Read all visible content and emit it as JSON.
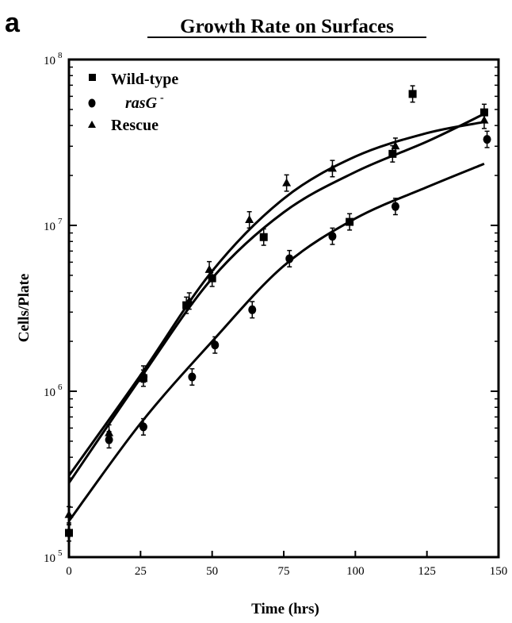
{
  "panel_label": "a",
  "chart_data": {
    "type": "scatter",
    "title": "Growth Rate on Surfaces",
    "xlabel": "Time (hrs)",
    "ylabel": "Cells/Plate",
    "xlim": [
      0,
      150
    ],
    "ylim": [
      100000,
      100000000
    ],
    "y_scale": "log",
    "x_ticks": [
      "0",
      "25",
      "50",
      "75",
      "100",
      "125",
      "150"
    ],
    "y_ticks": [
      {
        "base": "10",
        "exp": "5",
        "value": 100000
      },
      {
        "base": "10",
        "exp": "6",
        "value": 1000000
      },
      {
        "base": "10",
        "exp": "7",
        "value": 10000000
      },
      {
        "base": "10",
        "exp": "8",
        "value": 100000000
      }
    ],
    "grid": false,
    "legend_position": "top-left",
    "series": [
      {
        "name": "Wild-type",
        "marker": "square",
        "points": [
          {
            "x": 0,
            "y": 140000
          },
          {
            "x": 26,
            "y": 1200000
          },
          {
            "x": 41,
            "y": 3300000
          },
          {
            "x": 50,
            "y": 4800000
          },
          {
            "x": 68,
            "y": 8500000
          },
          {
            "x": 98,
            "y": 10500000
          },
          {
            "x": 113,
            "y": 27000000
          },
          {
            "x": 120,
            "y": 62000000
          },
          {
            "x": 145,
            "y": 48000000
          }
        ],
        "fit": [
          {
            "x": 0,
            "y": 280000
          },
          {
            "x": 25,
            "y": 1200000
          },
          {
            "x": 50,
            "y": 4800000
          },
          {
            "x": 75,
            "y": 12000000
          },
          {
            "x": 100,
            "y": 21000000
          },
          {
            "x": 125,
            "y": 32000000
          },
          {
            "x": 145,
            "y": 47000000
          }
        ]
      },
      {
        "name": "rasG",
        "name_superscript": "-",
        "marker": "circle",
        "points": [
          {
            "x": 0,
            "y": 140000
          },
          {
            "x": 14,
            "y": 510000
          },
          {
            "x": 26,
            "y": 610000
          },
          {
            "x": 43,
            "y": 1220000
          },
          {
            "x": 51,
            "y": 1900000
          },
          {
            "x": 64,
            "y": 3100000
          },
          {
            "x": 77,
            "y": 6300000
          },
          {
            "x": 92,
            "y": 8600000
          },
          {
            "x": 114,
            "y": 13000000
          },
          {
            "x": 146,
            "y": 33000000
          }
        ],
        "fit": [
          {
            "x": 0,
            "y": 165000
          },
          {
            "x": 25,
            "y": 640000
          },
          {
            "x": 50,
            "y": 2000000
          },
          {
            "x": 75,
            "y": 5700000
          },
          {
            "x": 100,
            "y": 11000000
          },
          {
            "x": 125,
            "y": 17000000
          },
          {
            "x": 145,
            "y": 23500000
          }
        ]
      },
      {
        "name": "Rescue",
        "marker": "triangle",
        "points": [
          {
            "x": 0,
            "y": 180000
          },
          {
            "x": 14,
            "y": 560000
          },
          {
            "x": 26,
            "y": 1270000
          },
          {
            "x": 42,
            "y": 3500000
          },
          {
            "x": 49,
            "y": 5400000
          },
          {
            "x": 63,
            "y": 10800000
          },
          {
            "x": 76,
            "y": 18000000
          },
          {
            "x": 92,
            "y": 22000000
          },
          {
            "x": 114,
            "y": 30000000
          },
          {
            "x": 145,
            "y": 43000000
          }
        ],
        "fit": [
          {
            "x": 0,
            "y": 310000
          },
          {
            "x": 25,
            "y": 1250000
          },
          {
            "x": 50,
            "y": 5300000
          },
          {
            "x": 75,
            "y": 14500000
          },
          {
            "x": 100,
            "y": 26000000
          },
          {
            "x": 125,
            "y": 36000000
          },
          {
            "x": 145,
            "y": 42000000
          }
        ]
      }
    ]
  }
}
